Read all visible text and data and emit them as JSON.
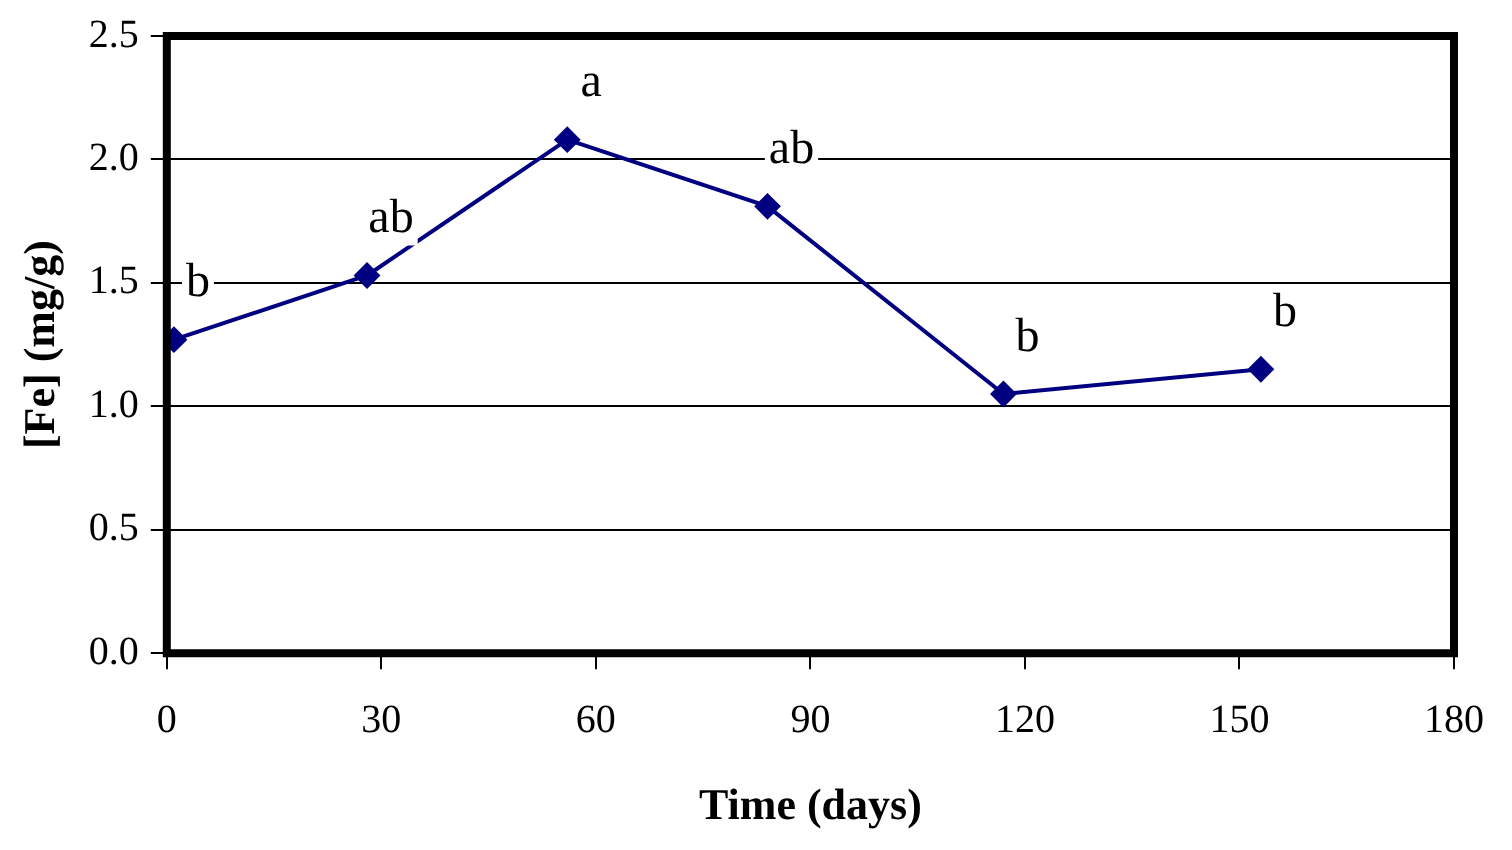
{
  "chart_data": {
    "type": "line",
    "xlabel": "Time (days)",
    "ylabel": "[Fe] (mg/g)",
    "x": [
      1,
      28,
      56,
      84,
      117,
      153
    ],
    "series": [
      {
        "color": "#000080",
        "values": [
          1.27,
          1.53,
          2.08,
          1.81,
          1.05,
          1.15
        ]
      }
    ],
    "xlim": [
      0,
      180
    ],
    "xticks": [
      0,
      30,
      60,
      90,
      120,
      150,
      180
    ],
    "ylim": [
      0,
      2.5
    ],
    "yticks": [
      {
        "value": 0,
        "label": "0.0"
      },
      {
        "value": 0.5,
        "label": "0.5"
      },
      {
        "value": 1,
        "label": "1.0"
      },
      {
        "value": 1.5,
        "label": "1.5"
      },
      {
        "value": 2,
        "label": "2.0"
      },
      {
        "value": 2.5,
        "label": "2.5"
      }
    ],
    "grid": "y",
    "marker": "diamond",
    "line_style": "solid",
    "legend": false,
    "annotations": [
      {
        "text": "b",
        "x": 1,
        "y": 1.27
      },
      {
        "text": "ab",
        "x": 28,
        "y": 1.53
      },
      {
        "text": "a",
        "x": 56,
        "y": 2.08
      },
      {
        "text": "ab",
        "x": 84,
        "y": 1.81
      },
      {
        "text": "b",
        "x": 117,
        "y": 1.05
      },
      {
        "text": "b",
        "x": 153,
        "y": 1.15
      }
    ]
  }
}
